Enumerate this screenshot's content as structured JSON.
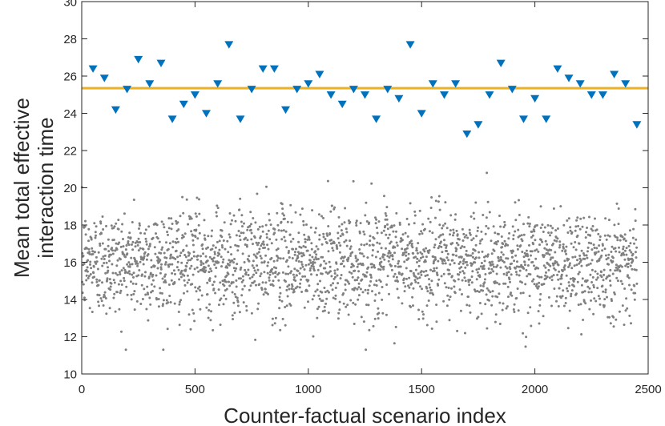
{
  "chart_data": {
    "type": "scatter",
    "title": "",
    "xlabel": "Counter-factual scenario index",
    "ylabel_lines": [
      "Mean total effective",
      "interaction time"
    ],
    "xlim": [
      0,
      2500
    ],
    "ylim": [
      10,
      30
    ],
    "xticks": [
      0,
      500,
      1000,
      1500,
      2000,
      2500
    ],
    "yticks": [
      10,
      12,
      14,
      16,
      18,
      20,
      22,
      24,
      26,
      28,
      30
    ],
    "grid": false,
    "legend": "none",
    "reference_line": {
      "y": 25.35,
      "color": "#EDB120"
    },
    "series": [
      {
        "marker": "triangle-down",
        "color": "#0072BD",
        "points": [
          [
            50,
            26.4
          ],
          [
            100,
            25.9
          ],
          [
            150,
            24.2
          ],
          [
            200,
            25.3
          ],
          [
            250,
            26.9
          ],
          [
            300,
            25.6
          ],
          [
            350,
            26.7
          ],
          [
            400,
            23.7
          ],
          [
            450,
            24.5
          ],
          [
            500,
            25.0
          ],
          [
            550,
            24.0
          ],
          [
            600,
            25.6
          ],
          [
            650,
            27.7
          ],
          [
            700,
            23.7
          ],
          [
            750,
            25.3
          ],
          [
            800,
            26.4
          ],
          [
            850,
            26.4
          ],
          [
            900,
            24.2
          ],
          [
            950,
            25.3
          ],
          [
            1000,
            25.6
          ],
          [
            1050,
            26.1
          ],
          [
            1100,
            25.0
          ],
          [
            1150,
            24.5
          ],
          [
            1200,
            25.3
          ],
          [
            1250,
            25.0
          ],
          [
            1300,
            23.7
          ],
          [
            1350,
            25.3
          ],
          [
            1400,
            24.8
          ],
          [
            1450,
            27.7
          ],
          [
            1500,
            24.0
          ],
          [
            1550,
            25.6
          ],
          [
            1600,
            25.0
          ],
          [
            1650,
            25.6
          ],
          [
            1700,
            22.9
          ],
          [
            1750,
            23.4
          ],
          [
            1800,
            25.0
          ],
          [
            1850,
            26.7
          ],
          [
            1900,
            25.3
          ],
          [
            1950,
            23.7
          ],
          [
            2000,
            24.8
          ],
          [
            2050,
            23.7
          ],
          [
            2100,
            26.4
          ],
          [
            2150,
            25.9
          ],
          [
            2200,
            25.6
          ],
          [
            2250,
            25.0
          ],
          [
            2300,
            25.0
          ],
          [
            2350,
            26.1
          ],
          [
            2400,
            25.6
          ],
          [
            2450,
            23.4
          ]
        ]
      },
      {
        "marker": "dot",
        "color": "#808080",
        "count": 2450,
        "x_range": [
          1,
          2450
        ],
        "y_mean": 16.0,
        "y_sd": 1.45,
        "y_range": [
          11.3,
          20.8
        ]
      }
    ]
  }
}
